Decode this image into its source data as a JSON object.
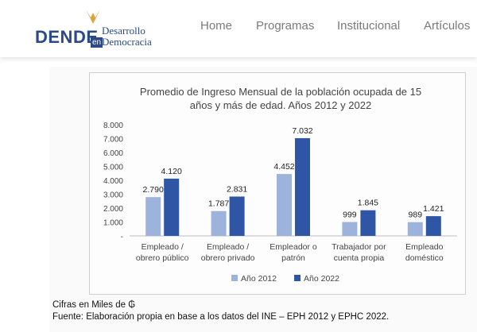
{
  "header": {
    "logo": {
      "main": "DENDE",
      "en": "en",
      "line1": "Desarrollo",
      "line2": "Democracia"
    },
    "nav": [
      "Home",
      "Programas",
      "Institucional",
      "Artículos"
    ]
  },
  "colors": {
    "brand": "#2b4a86",
    "series_2012": "#9db3dc",
    "series_2022": "#2f55a5"
  },
  "chart_data": {
    "type": "bar",
    "title_line1": "Promedio de Ingreso Mensual de la población ocupada de 15",
    "title_line2": "años y más de edad. Años 2012 y 2022",
    "categories": [
      [
        "Empleado /",
        "obrero público"
      ],
      [
        "Empleado /",
        "obrero privado"
      ],
      [
        "Empleador o",
        "patrón"
      ],
      [
        "Trabajador por",
        "cuenta propia"
      ],
      [
        "Empleado",
        "doméstico"
      ]
    ],
    "series": [
      {
        "name": "Año 2012",
        "values": [
          2790,
          1787,
          4452,
          999,
          989
        ],
        "labels": [
          "2.790",
          "1.787",
          "4.452",
          "999",
          "989"
        ]
      },
      {
        "name": "Año 2022",
        "values": [
          4120,
          2831,
          7032,
          1845,
          1421
        ],
        "labels": [
          "4.120",
          "2.831",
          "7.032",
          "1.845",
          "1.421"
        ]
      }
    ],
    "y_ticks": [
      0,
      1000,
      2000,
      3000,
      4000,
      5000,
      6000,
      7000,
      8000
    ],
    "y_tick_labels": [
      "-",
      "1.000",
      "2.000",
      "3.000",
      "4.000",
      "5.000",
      "6.000",
      "7.000",
      "8.000"
    ],
    "ylim": [
      0,
      8000
    ],
    "legend_position": "bottom"
  },
  "footnotes": {
    "units": "Cifras en Miles de ₲",
    "source": "Fuente: Elaboración propia en base a los datos del INE – EPH 2012 y EPHC 2022."
  }
}
